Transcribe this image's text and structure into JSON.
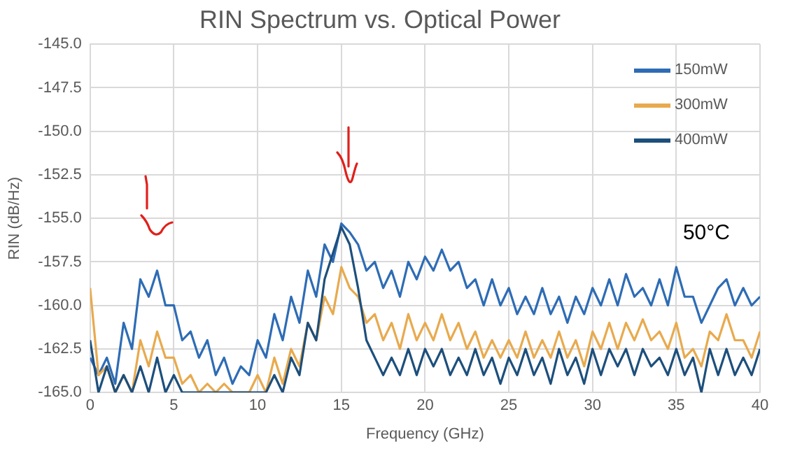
{
  "chart_data": {
    "type": "line",
    "title": "RIN Spectrum vs. Optical Power",
    "xlabel": "Frequency (GHz)",
    "ylabel": "RIN (dB/Hz)",
    "x": [
      0,
      0.5,
      1,
      1.5,
      2,
      2.5,
      3,
      3.5,
      4,
      4.5,
      5,
      5.5,
      6,
      6.5,
      7,
      7.5,
      8,
      8.5,
      9,
      9.5,
      10,
      10.5,
      11,
      11.5,
      12,
      12.5,
      13,
      13.5,
      14,
      14.5,
      15,
      15.5,
      16,
      16.5,
      17,
      17.5,
      18,
      18.5,
      19,
      19.5,
      20,
      20.5,
      21,
      21.5,
      22,
      22.5,
      23,
      23.5,
      24,
      24.5,
      25,
      25.5,
      26,
      26.5,
      27,
      27.5,
      28,
      28.5,
      29,
      29.5,
      30,
      30.5,
      31,
      31.5,
      32,
      32.5,
      33,
      33.5,
      34,
      34.5,
      35,
      35.5,
      36,
      36.5,
      37,
      37.5,
      38,
      38.5,
      39,
      39.5,
      40
    ],
    "series": [
      {
        "name": "150mW",
        "color": "#2e6cb5",
        "values": [
          -163,
          -164,
          -163,
          -164.5,
          -161,
          -162.5,
          -158.5,
          -159.5,
          -158,
          -160,
          -160,
          -162,
          -161.5,
          -163,
          -162,
          -164,
          -163,
          -164.5,
          -163.5,
          -164,
          -162,
          -163,
          -160.5,
          -162,
          -159.5,
          -161,
          -158,
          -159.5,
          -156.5,
          -157.5,
          -155.3,
          -155.8,
          -156.5,
          -158,
          -157.5,
          -159,
          -158,
          -159.5,
          -157.5,
          -158.5,
          -157.2,
          -158,
          -156.8,
          -158,
          -157.5,
          -159,
          -158.5,
          -160,
          -158.5,
          -160,
          -159,
          -160.5,
          -159.5,
          -160.5,
          -159,
          -160.5,
          -159.5,
          -161,
          -159.5,
          -160.5,
          -159,
          -160,
          -158.5,
          -160,
          -158.2,
          -159.5,
          -159,
          -160,
          -158.5,
          -160,
          -157.8,
          -159.5,
          -159.5,
          -161,
          -160,
          -159,
          -158.5,
          -160,
          -159,
          -160,
          -159.5
        ]
      },
      {
        "name": "300mW",
        "color": "#e8aa4e",
        "values": [
          -159,
          -164,
          -163.5,
          -165,
          -164,
          -165,
          -162,
          -163.5,
          -161.5,
          -163,
          -163,
          -164.5,
          -164,
          -165,
          -164.5,
          -165,
          -164.5,
          -165,
          -165,
          -165,
          -164,
          -165,
          -163,
          -164.5,
          -162.5,
          -163.5,
          -161,
          -162,
          -159.5,
          -160.5,
          -157.8,
          -159,
          -159.5,
          -161,
          -160.5,
          -162,
          -161,
          -162.5,
          -160.5,
          -162,
          -161,
          -162,
          -160.5,
          -162,
          -161,
          -162.5,
          -161.5,
          -163,
          -162,
          -163,
          -162,
          -163,
          -161.5,
          -163,
          -162,
          -163,
          -161.5,
          -163,
          -162,
          -163.5,
          -161.5,
          -162.5,
          -161,
          -162.5,
          -161,
          -162,
          -160.8,
          -162,
          -161.5,
          -162.5,
          -161,
          -163,
          -162.5,
          -163.5,
          -161.5,
          -162,
          -160.5,
          -162,
          -162,
          -163,
          -161.5
        ]
      },
      {
        "name": "400mW",
        "color": "#1d4f7c",
        "values": [
          -162,
          -165,
          -163.5,
          -165,
          -164,
          -165,
          -163.5,
          -165,
          -163,
          -165,
          -164,
          -165,
          -165,
          -165,
          -165,
          -165,
          -165,
          -165,
          -165,
          -165,
          -165,
          -165,
          -164,
          -165,
          -163,
          -164,
          -161,
          -162,
          -158.5,
          -157,
          -155.5,
          -156.5,
          -159,
          -162,
          -163,
          -164,
          -163,
          -164,
          -162.5,
          -164,
          -162.5,
          -163.5,
          -162.5,
          -164,
          -163,
          -164,
          -162.5,
          -164,
          -163,
          -164.5,
          -163,
          -164,
          -162.5,
          -164,
          -163,
          -164.5,
          -162.5,
          -164,
          -163,
          -164.5,
          -162.5,
          -164,
          -162.5,
          -163.5,
          -162.5,
          -164,
          -162.5,
          -163.5,
          -163,
          -164,
          -162.5,
          -164,
          -163,
          -165,
          -162.5,
          -164,
          -162.5,
          -164,
          -163,
          -164,
          -162.5
        ]
      }
    ],
    "xlim": [
      0,
      40
    ],
    "xticks": [
      0,
      5,
      10,
      15,
      20,
      25,
      30,
      35,
      40
    ],
    "ylim": [
      -165,
      -145
    ],
    "yticks": [
      {
        "value": -165,
        "label": "-165.0"
      },
      {
        "value": -162.5,
        "label": "-162.5"
      },
      {
        "value": -160,
        "label": "-160.0"
      },
      {
        "value": -157.5,
        "label": "-157.5"
      },
      {
        "value": -155,
        "label": "-155.0"
      },
      {
        "value": -152.5,
        "label": "-152.5"
      },
      {
        "value": -150,
        "label": "-150.0"
      },
      {
        "value": -147.5,
        "label": "-147.5"
      },
      {
        "value": -145,
        "label": "-145.0"
      }
    ],
    "grid": true,
    "legend": "top right",
    "marker": "none",
    "line_style": "solid",
    "annotations": [
      "50°C"
    ]
  }
}
